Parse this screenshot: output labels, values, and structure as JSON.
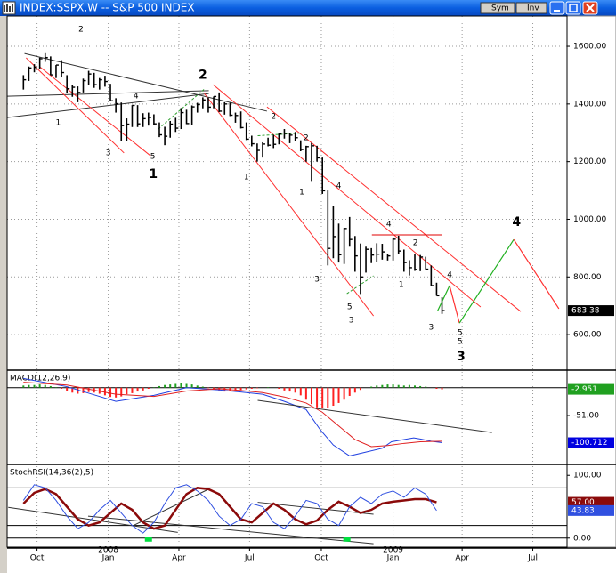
{
  "window": {
    "title": "INDEX:SSPX,W -- S&P 500 INDEX",
    "buttons": [
      "Sym",
      "Inv"
    ]
  },
  "x_axis": {
    "xlim": [
      -3,
      100
    ],
    "xticks": [
      {
        "value": 2.5,
        "label": "Oct"
      },
      {
        "value": 15.6,
        "label": "Jan"
      },
      {
        "value": 28.6,
        "label": "Apr"
      },
      {
        "value": 41.6,
        "label": "Jul"
      },
      {
        "value": 54.8,
        "label": "Oct"
      },
      {
        "value": 68,
        "label": "Jan"
      },
      {
        "value": 80.7,
        "label": "Apr"
      },
      {
        "value": 93.7,
        "label": "Jul"
      }
    ],
    "year_labels": [
      {
        "value": 15.6,
        "label": "2008"
      },
      {
        "value": 68,
        "label": "2009"
      }
    ]
  },
  "chart_data": [
    {
      "type": "hlc",
      "ylim": [
        480,
        1705
      ],
      "yticks": [
        {
          "value": 600,
          "label": "600.00"
        },
        {
          "value": 800,
          "label": "800.00"
        },
        {
          "value": 1000,
          "label": "1000.00"
        },
        {
          "value": 1200,
          "label": "1200.00"
        },
        {
          "value": 1400,
          "label": "1400.00"
        },
        {
          "value": 1600,
          "label": "1600.00"
        }
      ],
      "grid": true,
      "color": "#000000",
      "high": [
        1500,
        1530,
        1538,
        1561,
        1576,
        1565,
        1535,
        1552,
        1500,
        1466,
        1461,
        1488,
        1515,
        1508,
        1490,
        1498,
        1470,
        1420,
        1405,
        1350,
        1396,
        1396,
        1368,
        1370,
        1364,
        1336,
        1321,
        1341,
        1352,
        1386,
        1380,
        1395,
        1404,
        1423,
        1422,
        1426,
        1440,
        1406,
        1404,
        1370,
        1374,
        1336,
        1290,
        1263,
        1267,
        1283,
        1293,
        1298,
        1313,
        1300,
        1303,
        1274,
        1255,
        1265,
        1255,
        1214,
        1100,
        1045,
        985,
        970,
        1008,
        942,
        916,
        905,
        900,
        917,
        915,
        880,
        935,
        943,
        895,
        858,
        878,
        876,
        870,
        840,
        780,
        730
      ],
      "low": [
        1450,
        1480,
        1510,
        1520,
        1546,
        1500,
        1490,
        1492,
        1438,
        1425,
        1406,
        1440,
        1465,
        1456,
        1450,
        1460,
        1410,
        1370,
        1270,
        1270,
        1320,
        1320,
        1320,
        1325,
        1328,
        1285,
        1257,
        1283,
        1303,
        1313,
        1330,
        1328,
        1370,
        1385,
        1370,
        1385,
        1372,
        1363,
        1358,
        1335,
        1315,
        1275,
        1253,
        1200,
        1214,
        1253,
        1247,
        1260,
        1280,
        1264,
        1270,
        1236,
        1200,
        1133,
        1200,
        1088,
        840,
        865,
        850,
        845,
        905,
        818,
        741,
        815,
        848,
        852,
        860,
        857,
        857,
        880,
        818,
        805,
        821,
        820,
        826,
        770,
        735,
        672
      ],
      "close": [
        1484,
        1525,
        1527,
        1557,
        1561,
        1501,
        1535,
        1509,
        1453,
        1458,
        1440,
        1481,
        1504,
        1467,
        1484,
        1478,
        1411,
        1401,
        1325,
        1330,
        1395,
        1331,
        1349,
        1353,
        1331,
        1293,
        1288,
        1330,
        1316,
        1370,
        1332,
        1390,
        1398,
        1414,
        1389,
        1426,
        1375,
        1400,
        1361,
        1360,
        1318,
        1278,
        1262,
        1239,
        1261,
        1257,
        1260,
        1296,
        1298,
        1292,
        1283,
        1242,
        1252,
        1255,
        1213,
        1099,
        899,
        940,
        877,
        968,
        930,
        873,
        800,
        896,
        876,
        879,
        887,
        873,
        931,
        890,
        850,
        832,
        826,
        869,
        827,
        770,
        735,
        683.38
      ],
      "last_label": "683.38",
      "trendlines": [
        {
          "x": [
            0.2,
            44.8
          ],
          "y": [
            1575,
            1375
          ],
          "color": "#333333"
        },
        {
          "x": [
            -3,
            34.1
          ],
          "y": [
            1427,
            1446
          ],
          "color": "#333333"
        },
        {
          "x": [
            -3,
            34.1
          ],
          "y": [
            1353,
            1436
          ],
          "color": "#333333"
        },
        {
          "x": [
            0.5,
            18.5
          ],
          "y": [
            1560,
            1230
          ],
          "color": "#ff3030"
        },
        {
          "x": [
            3,
            23.4
          ],
          "y": [
            1529,
            1220
          ],
          "color": "#ff3030"
        },
        {
          "x": [
            33.3,
            64.4
          ],
          "y": [
            1436,
            665
          ],
          "color": "#ff3030"
        },
        {
          "x": [
            34.9,
            84.1
          ],
          "y": [
            1467,
            696
          ],
          "color": "#ff3030"
        },
        {
          "x": [
            44.8,
            91.5
          ],
          "y": [
            1390,
            680
          ],
          "color": "#ff3030"
        },
        {
          "x": [
            64.1,
            77
          ],
          "y": [
            946,
            946
          ],
          "color": "#e00000"
        },
        {
          "x": [
            24.8,
            33.3
          ],
          "y": [
            1313,
            1452
          ],
          "color": "#30a030"
        },
        {
          "x": [
            59.5,
            64.4
          ],
          "y": [
            742,
            804
          ],
          "color": "#30a030"
        },
        {
          "x": [
            43.1,
            52
          ],
          "y": [
            1290,
            1300
          ],
          "color": "#30a030"
        }
      ],
      "projection": {
        "x": [
          76.2,
          78.4,
          80.2,
          90.2,
          98.5
        ],
        "y": [
          683,
          770,
          640,
          930,
          690
        ],
        "colors": [
          "#20b020",
          "#ff3030",
          "#20b020",
          "#ff3030"
        ]
      },
      "annotations": [
        {
          "text": "2",
          "x": 10.6,
          "y": 1659
        },
        {
          "text": "4",
          "x": 20.7,
          "y": 1427
        },
        {
          "text": "3",
          "x": 15.6,
          "y": 1230
        },
        {
          "text": "1",
          "x": 6.4,
          "y": 1335
        },
        {
          "text": "5",
          "x": 23.8,
          "y": 1217
        },
        {
          "text": "1",
          "x": 23.9,
          "y": 1156,
          "bold": true
        },
        {
          "text": "2",
          "x": 33,
          "y": 1500,
          "bold": true
        },
        {
          "text": "2",
          "x": 46,
          "y": 1356
        },
        {
          "text": "2",
          "x": 52,
          "y": 1282
        },
        {
          "text": "1",
          "x": 41,
          "y": 1146
        },
        {
          "text": "1",
          "x": 51.2,
          "y": 1094
        },
        {
          "text": "4",
          "x": 58,
          "y": 1115
        },
        {
          "text": "3",
          "x": 54,
          "y": 791
        },
        {
          "text": "5",
          "x": 60,
          "y": 696
        },
        {
          "text": "3",
          "x": 60.3,
          "y": 650
        },
        {
          "text": "4",
          "x": 67.2,
          "y": 983
        },
        {
          "text": "2",
          "x": 72.1,
          "y": 918
        },
        {
          "text": "1",
          "x": 69.5,
          "y": 773
        },
        {
          "text": "4",
          "x": 78.4,
          "y": 807
        },
        {
          "text": "3",
          "x": 75,
          "y": 625
        },
        {
          "text": "5",
          "x": 80.3,
          "y": 606
        },
        {
          "text": "5",
          "x": 80.3,
          "y": 575
        },
        {
          "text": "3",
          "x": 80.5,
          "y": 523,
          "bold": true
        },
        {
          "text": "4",
          "x": 90.7,
          "y": 989,
          "bold": true
        }
      ]
    },
    {
      "type": "macd",
      "label": "MACD(12,26,9)",
      "ylim": [
        -139,
        29
      ],
      "yticks": [
        {
          "value": -51,
          "label": "-51.00"
        }
      ],
      "histogram": [
        4,
        5,
        5,
        6,
        5,
        3,
        1,
        -2,
        -6,
        -9,
        -11,
        -10,
        -8,
        -9,
        -11,
        -14,
        -17,
        -18,
        -16,
        -12,
        -10,
        -7,
        -5,
        -2,
        1,
        3,
        5,
        6,
        7,
        8,
        7,
        6,
        4,
        2,
        -1,
        -3,
        -5,
        -7,
        -6,
        -5,
        -4,
        -3,
        -2,
        -1,
        0,
        1,
        0,
        -2,
        -5,
        -7,
        -9,
        -14,
        -22,
        -30,
        -36,
        -38,
        -37,
        -33,
        -28,
        -22,
        -15,
        -9,
        -4,
        0,
        2,
        4,
        5,
        6,
        6,
        5,
        4,
        5,
        4,
        3,
        2,
        0,
        -2,
        -2.951
      ],
      "histogram_label": "-2.951",
      "histogram_colors": {
        "up": "#20a020",
        "down": "#ff2020"
      },
      "series": [
        {
          "name": "MACD",
          "color": "#2040e0",
          "x": [
            0,
            8,
            17,
            24,
            30,
            36,
            40,
            44,
            48,
            52,
            54.6,
            57,
            60,
            63,
            66,
            67.7,
            70,
            71.8,
            73,
            75,
            77
          ],
          "values": [
            17,
            2,
            -25,
            -14,
            0,
            -4,
            -8,
            -12,
            -25,
            -40,
            -77,
            -105,
            -125,
            -118,
            -111,
            -99,
            -95,
            -92,
            -94,
            -98,
            -100.712
          ],
          "last_label": "-100.712"
        },
        {
          "name": "Signal",
          "color": "#e02020",
          "x": [
            0,
            8,
            17,
            24,
            30,
            36,
            40,
            44,
            48,
            52,
            55,
            58,
            61,
            64,
            67,
            70,
            73,
            77
          ],
          "values": [
            10,
            5,
            -12,
            -16,
            -6,
            -2,
            -5,
            -9,
            -17,
            -28,
            -45,
            -70,
            -95,
            -108,
            -106,
            -102,
            -99,
            -98
          ]
        }
      ],
      "trendlines": [
        {
          "x": [
            43.1,
            86.2
          ],
          "y": [
            -23.2,
            -82.2
          ],
          "color": "#333333"
        }
      ]
    },
    {
      "type": "stoch",
      "label": "StochRSI(14,36(2),5)",
      "ylim": [
        -14.5,
        114.5
      ],
      "yticks": [
        {
          "value": 100,
          "label": "100.00"
        },
        {
          "value": 0,
          "label": "0.00"
        }
      ],
      "levels": [
        80,
        20
      ],
      "series": [
        {
          "name": "Slow",
          "color": "#8b0a0a",
          "width": 2.5,
          "x": [
            0,
            2,
            4,
            6,
            8,
            10,
            12,
            14,
            16,
            18,
            20,
            22,
            24,
            26,
            28,
            30,
            32,
            34,
            36,
            38,
            40,
            42,
            44,
            46,
            48,
            50,
            52,
            54,
            56,
            58,
            60,
            62,
            64,
            66,
            68,
            70,
            72,
            74,
            76
          ],
          "values": [
            55,
            72,
            78,
            70,
            50,
            30,
            20,
            25,
            40,
            55,
            45,
            25,
            15,
            20,
            45,
            70,
            80,
            78,
            70,
            50,
            30,
            25,
            40,
            55,
            45,
            30,
            22,
            28,
            45,
            58,
            50,
            40,
            45,
            55,
            58,
            60,
            62,
            62,
            57
          ],
          "last_label": "57.00"
        },
        {
          "name": "Fast",
          "color": "#3050e0",
          "width": 1,
          "x": [
            0,
            2,
            4,
            6,
            8,
            10,
            12,
            14,
            16,
            18,
            20,
            22,
            24,
            26,
            28,
            30,
            32,
            34,
            36,
            38,
            40,
            42,
            44,
            46,
            48,
            50,
            52,
            54,
            56,
            58,
            60,
            62,
            64,
            66,
            68,
            70,
            72,
            74,
            76
          ],
          "values": [
            60,
            85,
            80,
            60,
            35,
            15,
            25,
            45,
            60,
            40,
            20,
            8,
            25,
            55,
            80,
            85,
            75,
            60,
            35,
            20,
            30,
            55,
            50,
            25,
            15,
            35,
            60,
            55,
            30,
            20,
            50,
            65,
            55,
            70,
            75,
            65,
            80,
            70,
            43.83
          ],
          "last_label": "43.83"
        }
      ],
      "signals": {
        "x": [
          23,
          59.5
        ],
        "color": "#00e040"
      },
      "trendlines": [
        {
          "x": [
            -2.8,
            28.4
          ],
          "y": [
            49,
            9
          ],
          "color": "#333333"
        },
        {
          "x": [
            11.9,
            64.4
          ],
          "y": [
            35,
            -9
          ],
          "color": "#333333"
        },
        {
          "x": [
            20.2,
            34.1
          ],
          "y": [
            20,
            78
          ],
          "color": "#333333"
        },
        {
          "x": [
            43.1,
            64.4
          ],
          "y": [
            57,
            38
          ],
          "color": "#333333"
        }
      ]
    }
  ]
}
